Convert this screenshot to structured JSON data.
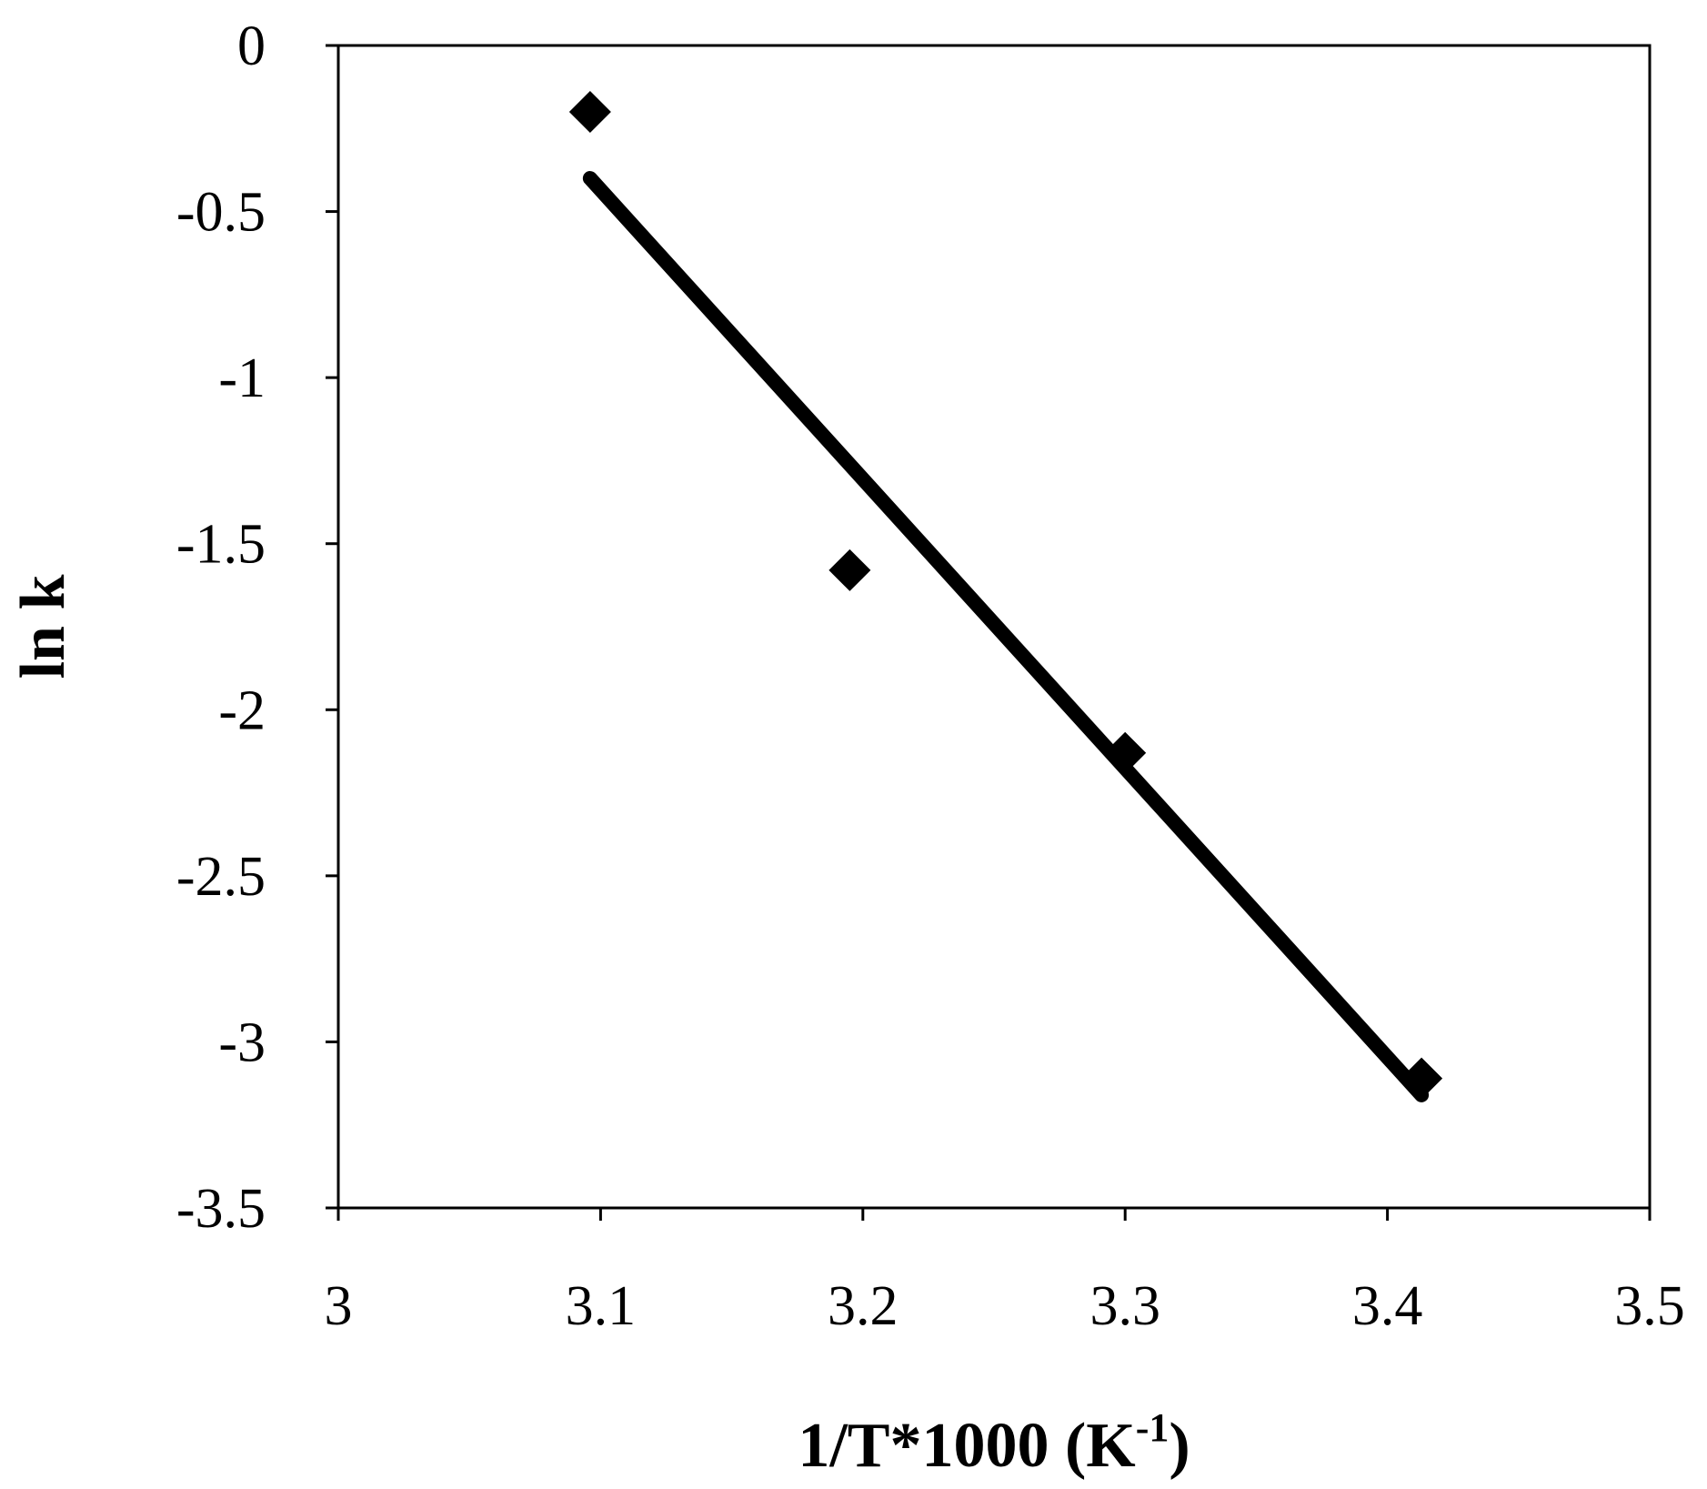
{
  "chart_data": {
    "type": "scatter",
    "title": "",
    "xlabel": {
      "main": "1/T*1000 (K",
      "sup": "-1",
      "end": ")"
    },
    "ylabel": "ln k",
    "xlim": [
      3,
      3.5
    ],
    "ylim": [
      -3.5,
      0
    ],
    "xticks": [
      "3",
      "3.1",
      "3.2",
      "3.3",
      "3.4",
      "3.5"
    ],
    "yticks": [
      "0",
      "-0.5",
      "-1",
      "-1.5",
      "-2",
      "-2.5",
      "-3",
      "-3.5"
    ],
    "series": [
      {
        "marker": "diamond",
        "color": "#000000",
        "points": [
          {
            "x": 3.096,
            "y": -0.2
          },
          {
            "x": 3.195,
            "y": -1.58
          },
          {
            "x": 3.3,
            "y": -2.13
          },
          {
            "x": 3.413,
            "y": -3.11
          }
        ]
      }
    ],
    "trendline": {
      "type": "linear",
      "color": "#000000",
      "x": [
        3.096,
        3.413
      ],
      "y": [
        -0.4,
        -3.16
      ]
    },
    "grid": false,
    "legend": "none"
  }
}
